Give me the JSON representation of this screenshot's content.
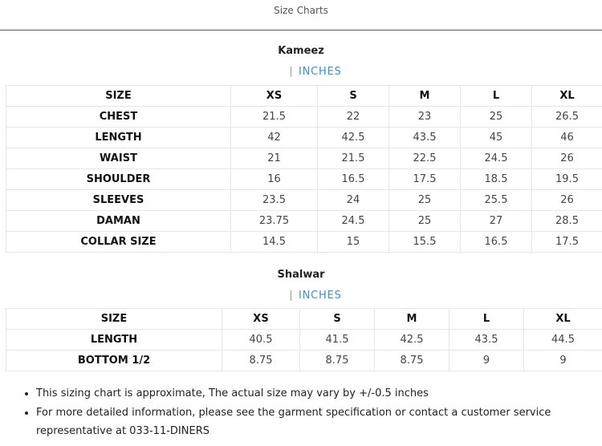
{
  "header": {
    "title": "Size Charts"
  },
  "sections": [
    {
      "title": "Kameez",
      "unit": "INCHES",
      "columns": [
        "SIZE",
        "XS",
        "S",
        "M",
        "L",
        "XL"
      ],
      "rows": [
        [
          "CHEST",
          "21.5",
          "22",
          "23",
          "25",
          "26.5"
        ],
        [
          "LENGTH",
          "42",
          "42.5",
          "43.5",
          "45",
          "46"
        ],
        [
          "WAIST",
          "21",
          "21.5",
          "22.5",
          "24.5",
          "26"
        ],
        [
          "SHOULDER",
          "16",
          "16.5",
          "17.5",
          "18.5",
          "19.5"
        ],
        [
          "SLEEVES",
          "23.5",
          "24",
          "25",
          "25.5",
          "26"
        ],
        [
          "DAMAN",
          "23.75",
          "24.5",
          "25",
          "27",
          "28.5"
        ],
        [
          "COLLAR SIZE",
          "14.5",
          "15",
          "15.5",
          "16.5",
          "17.5"
        ]
      ]
    },
    {
      "title": "Shalwar",
      "unit": "INCHES",
      "columns": [
        "SIZE",
        "XS",
        "S",
        "M",
        "L",
        "XL"
      ],
      "rows": [
        [
          "LENGTH",
          "40.5",
          "41.5",
          "42.5",
          "43.5",
          "44.5"
        ],
        [
          "BOTTOM 1/2",
          "8.75",
          "8.75",
          "8.75",
          "9",
          "9"
        ]
      ]
    }
  ],
  "notes": [
    "This sizing chart is approximate, The actual size may vary by +/-0.5 inches",
    "For more detailed information, please see the garment specification or contact a customer service representative at 033-11-DINERS"
  ]
}
